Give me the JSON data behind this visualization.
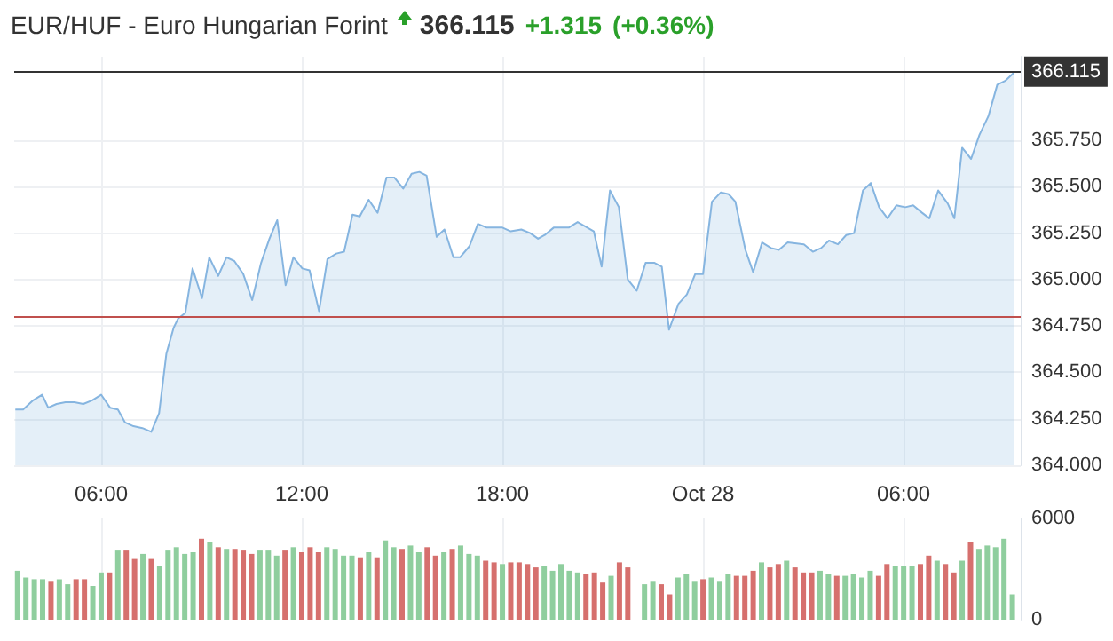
{
  "chart_data": [
    {
      "type": "area",
      "title": "EUR/HUF - Euro Hungarian Forint",
      "annotations": [
        "366.115",
        "+1.315",
        "(+0.36%)"
      ],
      "x": [
        "--10-27T03:26",
        "--10-27T03:40",
        "--10-27T03:58",
        "--10-27T04:14",
        "--10-27T04:25",
        "--10-27T04:40",
        "--10-27T04:56",
        "--10-27T05:12",
        "--10-27T05:28",
        "--10-27T05:44",
        "--10-27T06:00",
        "--10-27T06:16",
        "--10-27T06:30",
        "--10-27T06:43",
        "--10-27T06:58",
        "--10-27T07:14",
        "--10-27T07:30",
        "--10-27T07:44",
        "--10-27T07:57",
        "--10-27T08:10",
        "--10-27T08:18",
        "--10-27T08:31",
        "--10-27T08:44",
        "--10-27T09:01",
        "--10-27T09:14",
        "--10-27T09:30",
        "--10-27T09:45",
        "--10-27T09:59",
        "--10-27T10:15",
        "--10-27T10:31",
        "--10-27T10:47",
        "--10-27T11:02",
        "--10-27T11:16",
        "--10-27T11:31",
        "--10-27T11:45",
        "--10-27T12:01",
        "--10-27T12:14",
        "--10-27T12:31",
        "--10-27T12:46",
        "--10-27T13:02",
        "--10-27T13:16",
        "--10-27T13:31",
        "--10-27T13:44",
        "--10-27T14:00",
        "--10-27T14:16",
        "--10-27T14:32",
        "--10-27T14:46",
        "--10-27T15:02",
        "--10-27T15:17",
        "--10-27T15:31",
        "--10-27T15:44",
        "--10-27T16:02",
        "--10-27T16:16",
        "--10-27T16:32",
        "--10-27T16:44",
        "--10-27T17:01",
        "--10-27T17:16",
        "--10-27T17:32",
        "--10-27T18:00",
        "--10-27T18:15",
        "--10-27T18:34",
        "--10-27T18:50",
        "--10-27T19:04",
        "--10-27T19:16",
        "--10-27T19:32",
        "--10-27T19:59",
        "--10-27T20:15",
        "--10-27T20:44",
        "--10-27T20:58",
        "--10-27T21:13",
        "--10-27T21:29",
        "--10-27T21:45",
        "--10-27T22:01",
        "--10-27T22:17",
        "--10-27T22:33",
        "--10-27T22:46",
        "--10-27T22:59",
        "--10-27T23:16",
        "--10-27T23:31",
        "--10-27T23:46",
        "--10-28T00:00",
        "--10-28T00:16",
        "--10-28T00:32",
        "--10-28T00:46",
        "--10-28T00:58",
        "--10-28T01:16",
        "--10-28T01:30",
        "--10-28T01:46",
        "--10-28T02:02",
        "--10-28T02:16",
        "--10-28T02:32",
        "--10-28T03:01",
        "--10-28T03:17",
        "--10-28T03:32",
        "--10-28T03:46",
        "--10-28T04:02",
        "--10-28T04:17",
        "--10-28T04:31",
        "--10-28T04:47",
        "--10-28T05:01",
        "--10-28T05:16",
        "--10-28T05:31",
        "--10-28T05:47",
        "--10-28T06:03",
        "--10-28T06:17",
        "--10-28T06:33",
        "--10-28T06:46",
        "--10-28T07:02",
        "--10-28T07:19",
        "--10-28T07:31",
        "--10-28T07:45",
        "--10-28T08:01",
        "--10-28T08:16",
        "--10-28T08:32",
        "--10-28T08:48",
        "--10-28T09:02",
        "--10-28T09:18"
      ],
      "series": [
        {
          "color": "#86b5e0",
          "values": [
            364.3,
            364.3,
            364.35,
            364.38,
            364.31,
            364.33,
            364.34,
            364.34,
            364.33,
            364.35,
            364.38,
            364.31,
            364.3,
            364.23,
            364.21,
            364.2,
            364.18,
            364.28,
            364.6,
            364.74,
            364.79,
            364.82,
            365.06,
            364.9,
            365.12,
            365.02,
            365.12,
            365.1,
            365.03,
            364.89,
            365.09,
            365.22,
            365.32,
            364.97,
            365.12,
            365.06,
            365.05,
            364.83,
            365.11,
            365.14,
            365.15,
            365.35,
            365.34,
            365.43,
            365.36,
            365.55,
            365.55,
            365.49,
            365.57,
            365.58,
            365.56,
            365.23,
            365.27,
            365.12,
            365.12,
            365.18,
            365.3,
            365.28,
            365.28,
            365.26,
            365.27,
            365.25,
            365.22,
            365.24,
            365.28,
            365.28,
            365.31,
            365.26,
            365.07,
            365.48,
            365.39,
            365,
            364.94,
            365.09,
            365.09,
            365.07,
            364.73,
            364.87,
            364.92,
            365.03,
            365.03,
            365.42,
            365.47,
            365.46,
            365.42,
            365.16,
            365.04,
            365.2,
            365.17,
            365.16,
            365.2,
            365.19,
            365.15,
            365.17,
            365.21,
            365.19,
            365.24,
            365.25,
            365.48,
            365.52,
            365.39,
            365.33,
            365.4,
            365.39,
            365.4,
            365.36,
            365.33,
            365.48,
            365.41,
            365.33,
            365.71,
            365.65,
            365.78,
            365.88,
            366.05,
            366.07,
            366.115
          ]
        }
      ],
      "xlim": [
        "--10-27T03:24",
        "--10-28T09:30"
      ],
      "xticks": [
        {
          "value": "--10-27T06:00",
          "label": null
        },
        {
          "value": "--10-27T12:00",
          "label": null
        },
        {
          "value": "--10-27T18:00",
          "label": null
        },
        {
          "value": "--10-28",
          "label": null
        },
        {
          "value": "--10-28T06:00",
          "label": null
        }
      ],
      "ylim": [
        364,
        366.2
      ],
      "yticks": [
        {
          "value": 364,
          "label": "364.000"
        },
        {
          "value": 364.25,
          "label": "364.250"
        },
        {
          "value": 364.5,
          "label": "364.500"
        },
        {
          "value": 364.75,
          "label": "364.750"
        },
        {
          "value": 365,
          "label": "365.000"
        },
        {
          "value": 365.25,
          "label": "365.250"
        },
        {
          "value": 365.5,
          "label": "365.500"
        },
        {
          "value": 365.75,
          "label": "365.750"
        }
      ],
      "ref_lines": [
        {
          "axis": "y",
          "value": 366.115,
          "label": "366.115",
          "color": "#333333"
        },
        {
          "axis": "y",
          "value": 364.8,
          "color": "#c0504d"
        }
      ],
      "tick_labels": "y",
      "grid": true,
      "marker": "none"
    },
    {
      "type": "bar",
      "x": [
        "--10-27T03:30",
        "--10-27T03:45",
        "--10-27T04:00",
        "--10-27T04:15",
        "--10-27T04:30",
        "--10-27T04:45",
        "--10-27T05:00",
        "--10-27T05:15",
        "--10-27T05:30",
        "--10-27T05:45",
        "--10-27T06:00",
        "--10-27T06:15",
        "--10-27T06:30",
        "--10-27T06:45",
        "--10-27T07:00",
        "--10-27T07:15",
        "--10-27T07:30",
        "--10-27T07:45",
        "--10-27T08:00",
        "--10-27T08:15",
        "--10-27T08:30",
        "--10-27T08:45",
        "--10-27T09:00",
        "--10-27T09:15",
        "--10-27T09:30",
        "--10-27T09:45",
        "--10-27T10:00",
        "--10-27T10:15",
        "--10-27T10:30",
        "--10-27T10:45",
        "--10-27T11:00",
        "--10-27T11:15",
        "--10-27T11:30",
        "--10-27T11:45",
        "--10-27T12:00",
        "--10-27T12:15",
        "--10-27T12:30",
        "--10-27T12:45",
        "--10-27T13:00",
        "--10-27T13:15",
        "--10-27T13:30",
        "--10-27T13:45",
        "--10-27T14:00",
        "--10-27T14:15",
        "--10-27T14:30",
        "--10-27T14:45",
        "--10-27T15:00",
        "--10-27T15:15",
        "--10-27T15:30",
        "--10-27T15:45",
        "--10-27T16:00",
        "--10-27T16:15",
        "--10-27T16:30",
        "--10-27T16:45",
        "--10-27T17:00",
        "--10-27T17:15",
        "--10-27T17:30",
        "--10-27T17:45",
        "--10-27T18:00",
        "--10-27T18:15",
        "--10-27T18:30",
        "--10-27T18:45",
        "--10-27T19:00",
        "--10-27T19:15",
        "--10-27T19:30",
        "--10-27T19:45",
        "--10-27T20:00",
        "--10-27T20:15",
        "--10-27T20:30",
        "--10-27T20:45",
        "--10-27T21:00",
        "--10-27T21:15",
        "--10-27T21:30",
        "--10-27T21:45",
        "--10-27T22:15",
        "--10-27T22:30",
        "--10-27T22:45",
        "--10-27T23:00",
        "--10-27T23:15",
        "--10-27T23:30",
        "--10-27T23:45",
        "--10-28T00:00",
        "--10-28T00:15",
        "--10-28T00:30",
        "--10-28T00:45",
        "--10-28T01:00",
        "--10-28T01:15",
        "--10-28T01:30",
        "--10-28T01:45",
        "--10-28T02:00",
        "--10-28T02:15",
        "--10-28T02:30",
        "--10-28T02:45",
        "--10-28T03:00",
        "--10-28T03:15",
        "--10-28T03:30",
        "--10-28T03:45",
        "--10-28T04:00",
        "--10-28T04:15",
        "--10-28T04:30",
        "--10-28T04:45",
        "--10-28T05:00",
        "--10-28T05:15",
        "--10-28T05:30",
        "--10-28T05:45",
        "--10-28T06:00",
        "--10-28T06:15",
        "--10-28T06:30",
        "--10-28T06:45",
        "--10-28T07:00",
        "--10-28T07:15",
        "--10-28T07:30",
        "--10-28T07:45",
        "--10-28T08:00",
        "--10-28T08:15",
        "--10-28T08:30",
        "--10-28T08:45",
        "--10-28T09:00",
        "--10-28T09:15"
      ],
      "values": [
        2900,
        2500,
        2400,
        2400,
        2300,
        2400,
        2100,
        2400,
        2400,
        2000,
        2800,
        2800,
        4100,
        4100,
        3600,
        3900,
        3600,
        3200,
        4100,
        4300,
        3900,
        4000,
        4800,
        4600,
        4300,
        4200,
        4200,
        4100,
        3900,
        4100,
        4100,
        3800,
        4100,
        4300,
        4000,
        4300,
        4000,
        4300,
        4200,
        3800,
        3800,
        3700,
        4000,
        3700,
        4700,
        4300,
        4200,
        4400,
        4000,
        4300,
        3800,
        4000,
        4200,
        4400,
        3900,
        3800,
        3500,
        3400,
        3300,
        3400,
        3400,
        3300,
        3100,
        3200,
        2900,
        3300,
        2900,
        2800,
        2700,
        2800,
        2200,
        2600,
        3400,
        3100,
        2100,
        2300,
        2100,
        1500,
        2500,
        2700,
        2300,
        2400,
        2500,
        2300,
        2700,
        2600,
        2600,
        2900,
        3400,
        3100,
        3300,
        3500,
        3100,
        2800,
        2800,
        2900,
        2700,
        2600,
        2600,
        2700,
        2500,
        2900,
        2600,
        3300,
        3200,
        3200,
        3200,
        3300,
        3800,
        3500,
        3300,
        2800,
        3500,
        4600,
        4200,
        4400,
        4300,
        4800,
        1500
      ],
      "colors": [
        "#8fce9e",
        "#8fce9e",
        "#8fce9e",
        "#8fce9e",
        "#d6706e",
        "#8fce9e",
        "#8fce9e",
        "#d6706e",
        "#d6706e",
        "#8fce9e",
        "#8fce9e",
        "#d6706e",
        "#8fce9e",
        "#d6706e",
        "#d6706e",
        "#8fce9e",
        "#d6706e",
        "#8fce9e",
        "#8fce9e",
        "#8fce9e",
        "#8fce9e",
        "#8fce9e",
        "#d6706e",
        "#8fce9e",
        "#d6706e",
        "#8fce9e",
        "#d6706e",
        "#d6706e",
        "#d6706e",
        "#8fce9e",
        "#8fce9e",
        "#8fce9e",
        "#d6706e",
        "#8fce9e",
        "#d6706e",
        "#d6706e",
        "#d6706e",
        "#8fce9e",
        "#8fce9e",
        "#8fce9e",
        "#8fce9e",
        "#d6706e",
        "#8fce9e",
        "#d6706e",
        "#8fce9e",
        "#8fce9e",
        "#d6706e",
        "#8fce9e",
        "#8fce9e",
        "#d6706e",
        "#d6706e",
        "#8fce9e",
        "#d6706e",
        "#8fce9e",
        "#8fce9e",
        "#8fce9e",
        "#d6706e",
        "#d6706e",
        "#8fce9e",
        "#d6706e",
        "#d6706e",
        "#d6706e",
        "#d6706e",
        "#8fce9e",
        "#8fce9e",
        "#8fce9e",
        "#8fce9e",
        "#8fce9e",
        "#d6706e",
        "#d6706e",
        "#d6706e",
        "#8fce9e",
        "#d6706e",
        "#d6706e",
        "#8fce9e",
        "#8fce9e",
        "#d6706e",
        "#d6706e",
        "#8fce9e",
        "#8fce9e",
        "#8fce9e",
        "#d6706e",
        "#8fce9e",
        "#8fce9e",
        "#8fce9e",
        "#d6706e",
        "#d6706e",
        "#d6706e",
        "#8fce9e",
        "#d6706e",
        "#d6706e",
        "#8fce9e",
        "#d6706e",
        "#d6706e",
        "#d6706e",
        "#8fce9e",
        "#8fce9e",
        "#d6706e",
        "#8fce9e",
        "#8fce9e",
        "#8fce9e",
        "#8fce9e",
        "#d6706e",
        "#d6706e",
        "#8fce9e",
        "#8fce9e",
        "#8fce9e",
        "#d6706e",
        "#d6706e",
        "#8fce9e",
        "#d6706e",
        "#d6706e",
        "#8fce9e",
        "#d6706e",
        "#8fce9e",
        "#8fce9e",
        "#8fce9e",
        "#8fce9e",
        "#8fce9e"
      ],
      "xlim": [
        "--10-27T03:24",
        "--10-28T09:30"
      ],
      "xticks": [
        {
          "value": "--10-27T06:00",
          "label": "06:00"
        },
        {
          "value": "--10-27T12:00",
          "label": "12:00"
        },
        {
          "value": "--10-27T18:00",
          "label": "18:00"
        },
        {
          "value": "--10-28",
          "label": "Oct 28"
        },
        {
          "value": "--10-28T06:00",
          "label": "06:00"
        }
      ],
      "ylim": [
        0,
        6000
      ],
      "yticks": [
        0,
        6000
      ],
      "grid": "x"
    }
  ]
}
